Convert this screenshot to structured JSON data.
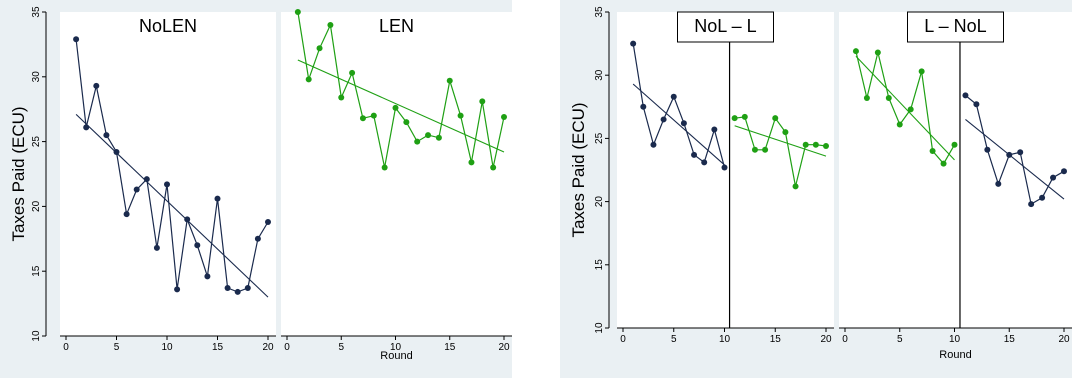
{
  "chart_data": [
    {
      "type": "line",
      "ylabel": "Taxes Paid (ECU)",
      "xlabel": "Round",
      "ylim": [
        10,
        35
      ],
      "xlim": [
        0,
        20
      ],
      "yticks": [
        10,
        15,
        20,
        25,
        30,
        35
      ],
      "xticks": [
        0,
        5,
        10,
        15,
        20
      ],
      "panels": [
        {
          "title": "NoLEN",
          "series": [
            {
              "color": "#1a2a4d",
              "x": [
                1,
                2,
                3,
                4,
                5,
                6,
                7,
                8,
                9,
                10,
                11,
                12,
                13,
                14,
                15,
                16,
                17,
                18,
                19,
                20
              ],
              "values": [
                32.9,
                26.1,
                29.3,
                25.5,
                24.2,
                19.4,
                21.3,
                22.1,
                16.8,
                21.7,
                13.6,
                19.0,
                17.0,
                14.6,
                20.6,
                13.7,
                13.4,
                13.7,
                17.5,
                18.8
              ],
              "fit": {
                "x": [
                  1,
                  20
                ],
                "y": [
                  27.1,
                  13.0
                ]
              }
            }
          ]
        },
        {
          "title": "LEN",
          "series": [
            {
              "color": "#1fa014",
              "x": [
                1,
                2,
                3,
                4,
                5,
                6,
                7,
                8,
                9,
                10,
                11,
                12,
                13,
                14,
                15,
                16,
                17,
                18,
                19,
                20
              ],
              "values": [
                35.0,
                29.8,
                32.2,
                34.0,
                28.4,
                30.3,
                26.8,
                27.0,
                23.0,
                27.6,
                26.5,
                25.0,
                25.5,
                25.3,
                29.7,
                27.0,
                23.4,
                28.1,
                23.0,
                26.9
              ],
              "fit": {
                "x": [
                  1,
                  20
                ],
                "y": [
                  31.3,
                  24.2
                ]
              }
            }
          ]
        }
      ]
    },
    {
      "type": "line",
      "ylabel": "Taxes Paid (ECU)",
      "xlabel": "Round",
      "ylim": [
        10,
        35
      ],
      "xlim": [
        0,
        20
      ],
      "yticks": [
        10,
        15,
        20,
        25,
        30,
        35
      ],
      "xticks": [
        0,
        5,
        10,
        15,
        20
      ],
      "panels": [
        {
          "title": "NoL – L",
          "break_at": 10.5,
          "series": [
            {
              "color": "#1a2a4d",
              "x": [
                1,
                2,
                3,
                4,
                5,
                6,
                7,
                8,
                9,
                10
              ],
              "values": [
                32.5,
                27.5,
                24.5,
                26.5,
                28.3,
                26.2,
                23.7,
                23.1,
                25.7,
                22.7
              ],
              "fit": {
                "x": [
                  1,
                  10
                ],
                "y": [
                  29.3,
                  22.9
                ]
              }
            },
            {
              "color": "#1fa014",
              "x": [
                11,
                12,
                13,
                14,
                15,
                16,
                17,
                18,
                19,
                20
              ],
              "values": [
                26.6,
                26.7,
                24.1,
                24.1,
                26.6,
                25.5,
                21.2,
                24.5,
                24.5,
                24.4
              ],
              "fit": {
                "x": [
                  11,
                  20
                ],
                "y": [
                  26.0,
                  23.6
                ]
              }
            }
          ]
        },
        {
          "title": "L – NoL",
          "break_at": 10.5,
          "series": [
            {
              "color": "#1fa014",
              "x": [
                1,
                2,
                3,
                4,
                5,
                6,
                7,
                8,
                9,
                10
              ],
              "values": [
                31.9,
                28.2,
                31.8,
                28.2,
                26.1,
                27.3,
                30.3,
                24.0,
                23.0,
                24.5
              ],
              "fit": {
                "x": [
                  1,
                  10
                ],
                "y": [
                  31.5,
                  23.3
                ]
              }
            },
            {
              "color": "#1a2a4d",
              "x": [
                11,
                12,
                13,
                14,
                15,
                16,
                17,
                18,
                19,
                20
              ],
              "values": [
                28.4,
                27.7,
                24.1,
                21.4,
                23.7,
                23.9,
                19.8,
                20.3,
                21.9,
                22.4
              ],
              "fit": {
                "x": [
                  11,
                  20
                ],
                "y": [
                  26.5,
                  20.2
                ]
              }
            }
          ]
        }
      ]
    }
  ]
}
